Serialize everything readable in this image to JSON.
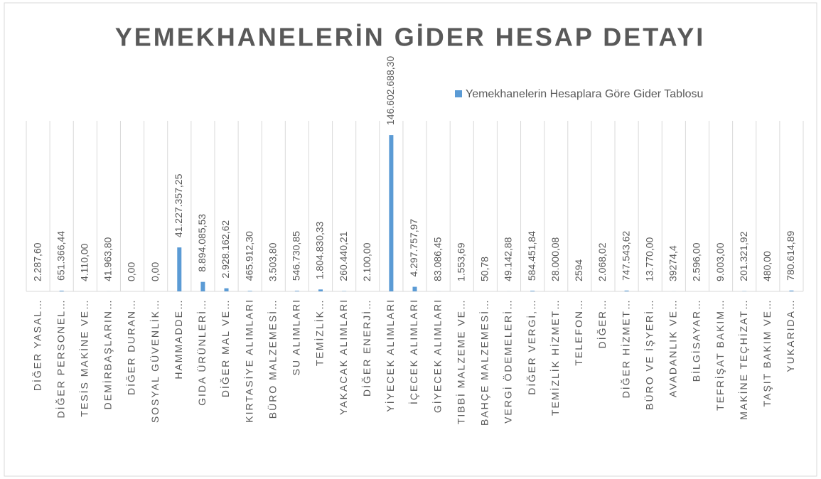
{
  "chart_data": {
    "type": "bar",
    "title": "YEMEKHANELERİN GİDER HESAP DETAYI",
    "legend": "top-right",
    "series": [
      {
        "name": "Yemekhanelerin Hesaplara Göre Gider Tablosu",
        "color": "#5b9bd5",
        "values": [
          2287.6,
          651366.44,
          4110,
          41963.8,
          0,
          0,
          41227357.25,
          8894085.53,
          2928162.62,
          465912.3,
          3503.8,
          546730.85,
          1804830.33,
          260440.21,
          2100,
          146602688.3,
          4297757.97,
          83086.45,
          1553.69,
          50.78,
          49142.88,
          584451.84,
          28000.08,
          2594,
          2068.02,
          747543.62,
          13770,
          39274.4,
          2596,
          9003,
          201321.92,
          480,
          780614.89
        ],
        "value_labels": [
          "2.287,60",
          "651.366,44",
          "4.110,00",
          "41.963,80",
          "0,00",
          "0,00",
          "41.227.357,25",
          "8.894.085,53",
          "2.928.162,62",
          "465.912,30",
          "3.503,80",
          "546.730,85",
          "1.804.830,33",
          "260.440,21",
          "2.100,00",
          "146.602.688,30",
          "4.297.757,97",
          "83.086,45",
          "1.553,69",
          "50,78",
          "49.142,88",
          "584.451,84",
          "28.000,08",
          "2594",
          "2.068,02",
          "747.543,62",
          "13.770,00",
          "39274,4",
          "2.596,00",
          "9.003,00",
          "201.321,92",
          "480,00",
          "780.614,89"
        ]
      }
    ],
    "categories": [
      "DİĞER YASAL…",
      "DİĞER PERSONEL…",
      "TESİS MAKİNE VE…",
      "DEMİRBAŞLARIN…",
      "DİĞER DURAN…",
      "SOSYAL GÜVENLİK…",
      "HAMMADDE…",
      "GIDA ÜRÜNLERİ…",
      "DİĞER MAL VE…",
      "KIRTASİYE ALIMLARI",
      "BÜRO MALZEMESİ…",
      "SU ALIMLARI",
      "TEMİZLİK…",
      "YAKACAK ALIMLARI",
      "DİĞER ENERJİ…",
      "YİYECEK ALIMLARI",
      "İÇECEK ALIMLARI",
      "GİYECEK ALIMLARI",
      "TIBBİ MALZEME VE…",
      "BAHÇE MALZEMESİ…",
      "VERGİ ÖDEMELERİ…",
      "DİĞER VERGİ,…",
      "TEMİZLİK HİZMET…",
      "TELEFON…",
      "DİĞER…",
      "DİĞER HİZMET…",
      "BÜRO VE İŞYERİ…",
      "AVADANLIK VE…",
      "BİLGİSAYAR…",
      "TEFRİŞAT BAKIM…",
      "MAKİNE TEÇHİZAT…",
      "TAŞIT BAKIM VE…",
      "YUKARIDA…"
    ],
    "ylim": [
      0,
      160000000
    ]
  }
}
